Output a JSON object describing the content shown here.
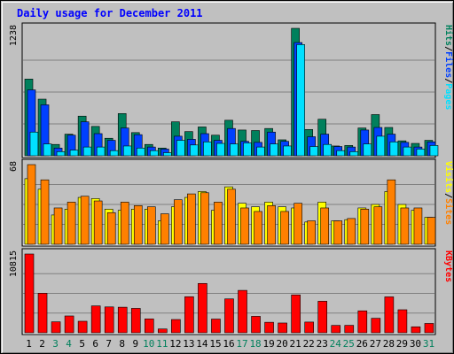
{
  "title": "Daily usage for December 2011",
  "colors": {
    "title": "#0000ff",
    "panel_bg": "#c0c0c0",
    "plot_bg": "#c0c0c0",
    "gridline": "#808080",
    "hits": "#00805c",
    "files": "#0040ff",
    "pages": "#00e0ff",
    "visits": "#ffff00",
    "sites": "#ff8000",
    "kbytes": "#ff0000",
    "weekday_label": "#000000",
    "weekend_label": "#00805c"
  },
  "chart_data": [
    {
      "type": "bar",
      "panel": "hits-files-pages",
      "ymax_label": "1238",
      "ylim": [
        0,
        1238
      ],
      "legend": [
        "Pages",
        "Files",
        "Hits"
      ],
      "legend_separator": "/",
      "categories": [
        "1",
        "2",
        "3",
        "4",
        "5",
        "6",
        "7",
        "8",
        "9",
        "10",
        "11",
        "12",
        "13",
        "14",
        "15",
        "16",
        "17",
        "18",
        "19",
        "20",
        "21",
        "22",
        "23",
        "24",
        "25",
        "26",
        "27",
        "28",
        "29",
        "30",
        "31"
      ],
      "weekend_days": [
        "3",
        "4",
        "10",
        "11",
        "17",
        "18",
        "24",
        "25",
        "31"
      ],
      "series": [
        {
          "name": "Hits",
          "values": [
            745,
            550,
            110,
            210,
            385,
            285,
            170,
            410,
            225,
            110,
            75,
            330,
            235,
            280,
            200,
            345,
            250,
            245,
            265,
            155,
            1238,
            255,
            355,
            95,
            100,
            270,
            400,
            275,
            145,
            120,
            150
          ]
        },
        {
          "name": "Files",
          "values": [
            640,
            495,
            75,
            200,
            330,
            215,
            150,
            270,
            205,
            85,
            65,
            190,
            160,
            215,
            150,
            265,
            140,
            130,
            230,
            140,
            1100,
            185,
            210,
            90,
            85,
            250,
            275,
            210,
            130,
            85,
            135
          ]
        },
        {
          "name": "Pages",
          "values": [
            230,
            115,
            40,
            55,
            85,
            85,
            50,
            95,
            75,
            50,
            30,
            150,
            105,
            135,
            120,
            115,
            125,
            85,
            115,
            95,
            1080,
            90,
            110,
            50,
            40,
            115,
            190,
            135,
            85,
            65,
            100
          ]
        }
      ]
    },
    {
      "type": "bar",
      "panel": "sites-visits",
      "ymax_label": "68",
      "ylim": [
        0,
        68
      ],
      "legend": [
        "Sites",
        "Visits"
      ],
      "legend_separator": "/",
      "categories": [
        "1",
        "2",
        "3",
        "4",
        "5",
        "6",
        "7",
        "8",
        "9",
        "10",
        "11",
        "12",
        "13",
        "14",
        "15",
        "16",
        "17",
        "18",
        "19",
        "20",
        "21",
        "22",
        "23",
        "24",
        "25",
        "26",
        "27",
        "28",
        "29",
        "30",
        "31"
      ],
      "series": [
        {
          "name": "Visits",
          "values": [
            56,
            47,
            25,
            30,
            40,
            39,
            30,
            29,
            30,
            30,
            20,
            32,
            40,
            45,
            29,
            49,
            35,
            32,
            36,
            32,
            31,
            19,
            36,
            20,
            21,
            31,
            34,
            45,
            34,
            29,
            23
          ]
        },
        {
          "name": "Sites",
          "values": [
            68,
            55,
            31,
            36,
            41,
            37,
            27,
            36,
            33,
            32,
            26,
            38,
            43,
            44,
            36,
            47,
            31,
            28,
            33,
            28,
            35,
            20,
            31,
            20,
            22,
            30,
            32,
            55,
            31,
            31,
            23
          ]
        }
      ]
    },
    {
      "type": "bar",
      "panel": "kbytes",
      "ymax_label": "10815",
      "ylim": [
        0,
        10815
      ],
      "legend": [
        "KBytes"
      ],
      "categories": [
        "1",
        "2",
        "3",
        "4",
        "5",
        "6",
        "7",
        "8",
        "9",
        "10",
        "11",
        "12",
        "13",
        "14",
        "15",
        "16",
        "17",
        "18",
        "19",
        "20",
        "21",
        "22",
        "23",
        "24",
        "25",
        "26",
        "27",
        "28",
        "29",
        "30",
        "31"
      ],
      "series": [
        {
          "name": "KBytes",
          "values": [
            10815,
            5430,
            1505,
            2310,
            1580,
            3690,
            3550,
            3510,
            3350,
            1900,
            520,
            1820,
            4950,
            6770,
            1880,
            4650,
            5820,
            2260,
            1440,
            1340,
            5200,
            1470,
            4330,
            1010,
            1020,
            3010,
            1990,
            4930,
            3160,
            820,
            1280
          ]
        }
      ]
    }
  ]
}
